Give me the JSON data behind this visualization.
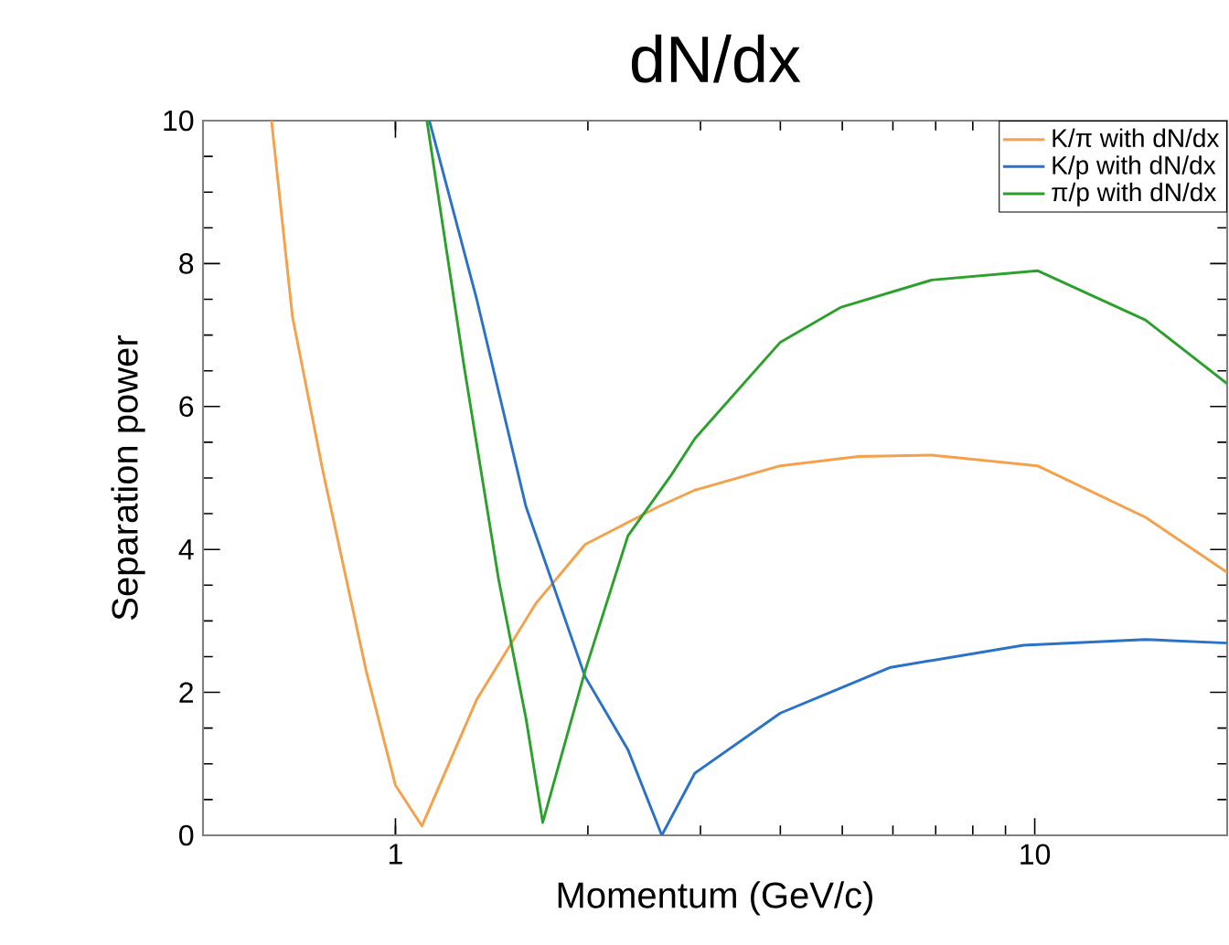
{
  "chart_data": {
    "type": "line",
    "title": "dN/dx",
    "xlabel": "Momentum (GeV/c)",
    "ylabel": "Separation power",
    "log": "x",
    "xlim": [
      0.5,
      20
    ],
    "ylim": [
      0,
      10
    ],
    "xticks": [
      1,
      10
    ],
    "yticks": [
      0,
      2,
      4,
      6,
      8,
      10
    ],
    "grid": false,
    "legend": "top right",
    "marker": "none",
    "line_style": "solid",
    "series": [
      {
        "name": "K/π with dN/dx",
        "color": "#f5a04a",
        "x": [
          0.64,
          0.69,
          0.77,
          0.9,
          1.0,
          1.1,
          1.34,
          1.66,
          1.98,
          2.58,
          2.94,
          4.0,
          5.3,
          6.9,
          10.1,
          14.9,
          20
        ],
        "values": [
          10,
          7.26,
          5.1,
          2.3,
          0.7,
          0.13,
          1.9,
          3.25,
          4.07,
          4.6,
          4.83,
          5.17,
          5.3,
          5.32,
          5.17,
          4.45,
          3.68
        ]
      },
      {
        "name": "K/p with dN/dx",
        "color": "#2a72c8",
        "x": [
          1.13,
          1.34,
          1.6,
          1.98,
          2.31,
          2.61,
          2.94,
          4.0,
          5.95,
          9.6,
          14.9,
          20
        ],
        "values": [
          10,
          7.5,
          4.6,
          2.22,
          1.2,
          0.0,
          0.87,
          1.71,
          2.35,
          2.66,
          2.74,
          2.69
        ]
      },
      {
        "name": "π/p with dN/dx",
        "color": "#2ca02c",
        "x": [
          1.12,
          1.28,
          1.45,
          1.6,
          1.7,
          1.98,
          2.31,
          2.7,
          2.94,
          4.0,
          4.98,
          6.9,
          10.1,
          14.9,
          20
        ],
        "values": [
          10,
          6.57,
          3.58,
          1.64,
          0.18,
          2.3,
          4.19,
          5.04,
          5.55,
          6.9,
          7.39,
          7.77,
          7.9,
          7.21,
          6.32
        ]
      }
    ]
  }
}
